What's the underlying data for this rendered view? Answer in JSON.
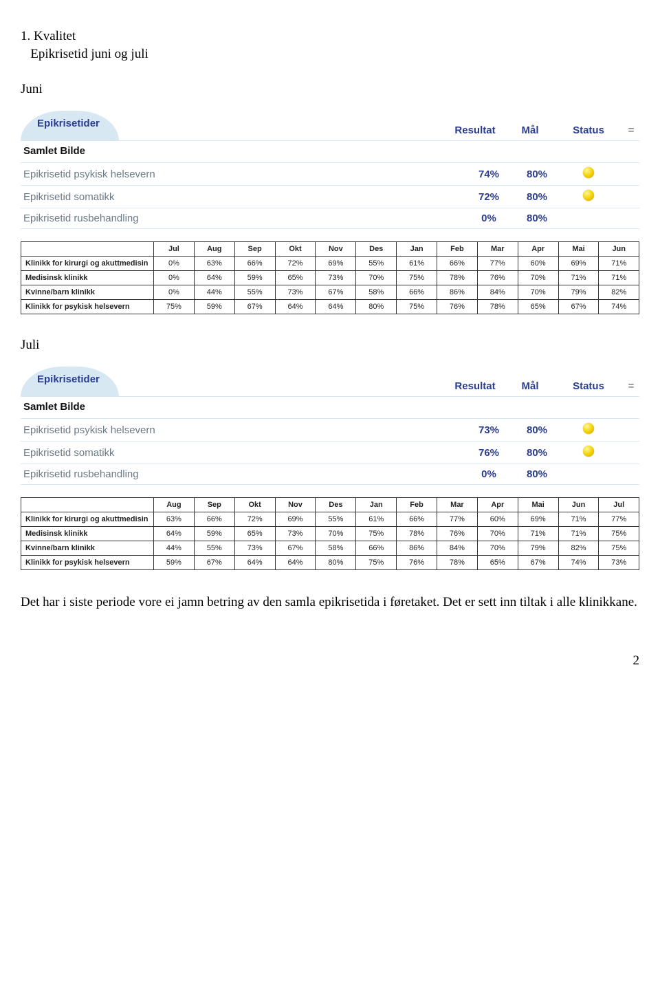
{
  "heading": {
    "num": "1.",
    "title": "Kvalitet",
    "subtitle": "Epikrisetid juni og juli"
  },
  "labels": {
    "juni": "Juni",
    "juli": "Juli",
    "tab": "Epikrisetider",
    "resultat": "Resultat",
    "mal": "Mål",
    "status": "Status",
    "eq": "=",
    "samlet": "Samlet Bilde"
  },
  "juni": {
    "metrics": [
      {
        "name": "Epikrisetid psykisk helsevern",
        "resultat": "74%",
        "mal": "80%",
        "status": "yellow"
      },
      {
        "name": "Epikrisetid somatikk",
        "resultat": "72%",
        "mal": "80%",
        "status": "yellow"
      },
      {
        "name": "Epikrisetid rusbehandling",
        "resultat": "0%",
        "mal": "80%",
        "status": ""
      }
    ],
    "grid": {
      "months": [
        "Jul",
        "Aug",
        "Sep",
        "Okt",
        "Nov",
        "Des",
        "Jan",
        "Feb",
        "Mar",
        "Apr",
        "Mai",
        "Jun"
      ],
      "rows": [
        {
          "name": "Klinikk for kirurgi og akuttmedisin",
          "vals": [
            "0%",
            "63%",
            "66%",
            "72%",
            "69%",
            "55%",
            "61%",
            "66%",
            "77%",
            "60%",
            "69%",
            "71%"
          ]
        },
        {
          "name": "Medisinsk klinikk",
          "vals": [
            "0%",
            "64%",
            "59%",
            "65%",
            "73%",
            "70%",
            "75%",
            "78%",
            "76%",
            "70%",
            "71%",
            "71%"
          ]
        },
        {
          "name": "Kvinne/barn klinikk",
          "vals": [
            "0%",
            "44%",
            "55%",
            "73%",
            "67%",
            "58%",
            "66%",
            "86%",
            "84%",
            "70%",
            "79%",
            "82%"
          ]
        },
        {
          "name": "Klinikk for psykisk helsevern",
          "vals": [
            "75%",
            "59%",
            "67%",
            "64%",
            "64%",
            "80%",
            "75%",
            "76%",
            "78%",
            "65%",
            "67%",
            "74%"
          ]
        }
      ]
    }
  },
  "juli": {
    "metrics": [
      {
        "name": "Epikrisetid psykisk helsevern",
        "resultat": "73%",
        "mal": "80%",
        "status": "yellow"
      },
      {
        "name": "Epikrisetid somatikk",
        "resultat": "76%",
        "mal": "80%",
        "status": "yellow"
      },
      {
        "name": "Epikrisetid rusbehandling",
        "resultat": "0%",
        "mal": "80%",
        "status": ""
      }
    ],
    "grid": {
      "months": [
        "Aug",
        "Sep",
        "Okt",
        "Nov",
        "Des",
        "Jan",
        "Feb",
        "Mar",
        "Apr",
        "Mai",
        "Jun",
        "Jul"
      ],
      "rows": [
        {
          "name": "Klinikk for kirurgi og akuttmedisin",
          "vals": [
            "63%",
            "66%",
            "72%",
            "69%",
            "55%",
            "61%",
            "66%",
            "77%",
            "60%",
            "69%",
            "71%",
            "77%"
          ]
        },
        {
          "name": "Medisinsk klinikk",
          "vals": [
            "64%",
            "59%",
            "65%",
            "73%",
            "70%",
            "75%",
            "78%",
            "76%",
            "70%",
            "71%",
            "71%",
            "75%"
          ]
        },
        {
          "name": "Kvinne/barn klinikk",
          "vals": [
            "44%",
            "55%",
            "73%",
            "67%",
            "58%",
            "66%",
            "86%",
            "84%",
            "70%",
            "79%",
            "82%",
            "75%"
          ]
        },
        {
          "name": "Klinikk for psykisk helsevern",
          "vals": [
            "59%",
            "67%",
            "64%",
            "64%",
            "80%",
            "75%",
            "76%",
            "78%",
            "65%",
            "67%",
            "74%",
            "73%"
          ]
        }
      ]
    }
  },
  "footer": "Det har i siste periode vore ei jamn betring av den samla epikrisetida i føretaket. Det er sett inn tiltak i alle klinikkane.",
  "pagenum": "2",
  "colors": {
    "accent": "#2a3d8f",
    "tabbg": "#d7e8f2",
    "muted": "#6a7a85",
    "border": "#333333",
    "status_yellow": "#f2d000"
  }
}
